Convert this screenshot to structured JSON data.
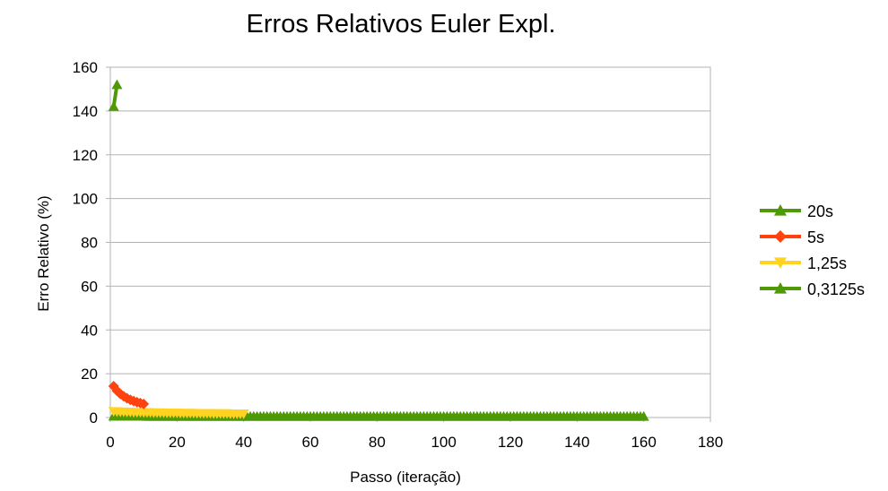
{
  "chart_data": {
    "type": "line",
    "title": "Erros Relativos Euler Expl.",
    "xlabel": "Passo (iteração)",
    "ylabel": "Erro Relativo (%)",
    "xlim": [
      0,
      180
    ],
    "ylim": [
      0,
      160
    ],
    "xticks": [
      0,
      20,
      40,
      60,
      80,
      100,
      120,
      140,
      160,
      180
    ],
    "yticks": [
      0,
      20,
      40,
      60,
      80,
      100,
      120,
      140,
      160
    ],
    "grid": "horizontal",
    "legend_position": "right",
    "series": [
      {
        "name": "20s",
        "color": "#4e9a06",
        "marker": "triangle-up",
        "x": [
          1,
          2
        ],
        "y": [
          142,
          152
        ]
      },
      {
        "name": "5s",
        "color": "#ff420e",
        "marker": "diamond",
        "x": [
          1,
          2,
          3,
          4,
          5,
          6,
          7,
          8,
          9,
          10
        ],
        "y": [
          14.3,
          12.2,
          10.8,
          9.7,
          8.8,
          8.1,
          7.5,
          7.0,
          6.6,
          6.2
        ]
      },
      {
        "name": "1,25s",
        "color": "#ffd320",
        "marker": "triangle-down",
        "x": [
          1,
          2,
          3,
          4,
          5,
          6,
          7,
          8,
          9,
          10,
          11,
          12,
          13,
          14,
          15,
          16,
          17,
          18,
          19,
          20,
          21,
          22,
          23,
          24,
          25,
          26,
          27,
          28,
          29,
          30,
          31,
          32,
          33,
          34,
          35,
          36,
          37,
          38,
          39,
          40
        ],
        "y": [
          2.8,
          2.7,
          2.6,
          2.6,
          2.5,
          2.5,
          2.4,
          2.4,
          2.4,
          2.3,
          2.3,
          2.3,
          2.2,
          2.2,
          2.2,
          2.2,
          2.1,
          2.1,
          2.1,
          2.1,
          2.0,
          2.0,
          2.0,
          2.0,
          2.0,
          1.9,
          1.9,
          1.9,
          1.9,
          1.9,
          1.8,
          1.8,
          1.8,
          1.8,
          1.8,
          1.7,
          1.7,
          1.7,
          1.7,
          1.7
        ]
      },
      {
        "name": "0,3125s",
        "color": "#4e9a06",
        "marker": "triangle-up",
        "x": [
          1,
          2,
          3,
          4,
          5,
          6,
          7,
          8,
          9,
          10,
          11,
          12,
          13,
          14,
          15,
          16,
          17,
          18,
          19,
          20,
          21,
          22,
          23,
          24,
          25,
          26,
          27,
          28,
          29,
          30,
          31,
          32,
          33,
          34,
          35,
          36,
          37,
          38,
          39,
          40,
          41,
          42,
          43,
          44,
          45,
          46,
          47,
          48,
          49,
          50,
          51,
          52,
          53,
          54,
          55,
          56,
          57,
          58,
          59,
          60,
          61,
          62,
          63,
          64,
          65,
          66,
          67,
          68,
          69,
          70,
          71,
          72,
          73,
          74,
          75,
          76,
          77,
          78,
          79,
          80,
          81,
          82,
          83,
          84,
          85,
          86,
          87,
          88,
          89,
          90,
          91,
          92,
          93,
          94,
          95,
          96,
          97,
          98,
          99,
          100,
          101,
          102,
          103,
          104,
          105,
          106,
          107,
          108,
          109,
          110,
          111,
          112,
          113,
          114,
          115,
          116,
          117,
          118,
          119,
          120,
          121,
          122,
          123,
          124,
          125,
          126,
          127,
          128,
          129,
          130,
          131,
          132,
          133,
          134,
          135,
          136,
          137,
          138,
          139,
          140,
          141,
          142,
          143,
          144,
          145,
          146,
          147,
          148,
          149,
          150,
          151,
          152,
          153,
          154,
          155,
          156,
          157,
          158,
          159,
          160
        ],
        "y": [
          0.6,
          0.6,
          0.6,
          0.6,
          0.6,
          0.6,
          0.6,
          0.6,
          0.6,
          0.6,
          0.5,
          0.5,
          0.5,
          0.5,
          0.5,
          0.5,
          0.5,
          0.5,
          0.5,
          0.5,
          0.5,
          0.5,
          0.5,
          0.5,
          0.5,
          0.5,
          0.5,
          0.5,
          0.5,
          0.5,
          0.5,
          0.5,
          0.5,
          0.5,
          0.5,
          0.5,
          0.5,
          0.5,
          0.5,
          0.5,
          0.5,
          0.5,
          0.5,
          0.5,
          0.5,
          0.5,
          0.5,
          0.5,
          0.5,
          0.5,
          0.5,
          0.5,
          0.5,
          0.5,
          0.5,
          0.5,
          0.5,
          0.5,
          0.5,
          0.5,
          0.5,
          0.5,
          0.5,
          0.5,
          0.5,
          0.5,
          0.5,
          0.5,
          0.5,
          0.5,
          0.5,
          0.5,
          0.5,
          0.5,
          0.5,
          0.5,
          0.5,
          0.5,
          0.5,
          0.5,
          0.5,
          0.5,
          0.5,
          0.5,
          0.5,
          0.5,
          0.5,
          0.5,
          0.5,
          0.5,
          0.5,
          0.5,
          0.5,
          0.5,
          0.5,
          0.5,
          0.5,
          0.5,
          0.5,
          0.5,
          0.5,
          0.5,
          0.5,
          0.5,
          0.5,
          0.5,
          0.5,
          0.5,
          0.5,
          0.5,
          0.5,
          0.5,
          0.5,
          0.5,
          0.5,
          0.5,
          0.5,
          0.5,
          0.5,
          0.5,
          0.5,
          0.5,
          0.5,
          0.5,
          0.5,
          0.5,
          0.5,
          0.5,
          0.5,
          0.5,
          0.5,
          0.5,
          0.5,
          0.5,
          0.5,
          0.5,
          0.5,
          0.5,
          0.5,
          0.5,
          0.5,
          0.5,
          0.5,
          0.5,
          0.5,
          0.5,
          0.5,
          0.5,
          0.5,
          0.5,
          0.5,
          0.5,
          0.5,
          0.5,
          0.5,
          0.5,
          0.5,
          0.5,
          0.5,
          0.5
        ]
      }
    ],
    "frame_color": "#b3b3b3",
    "grid_color": "#b3b3b3"
  }
}
